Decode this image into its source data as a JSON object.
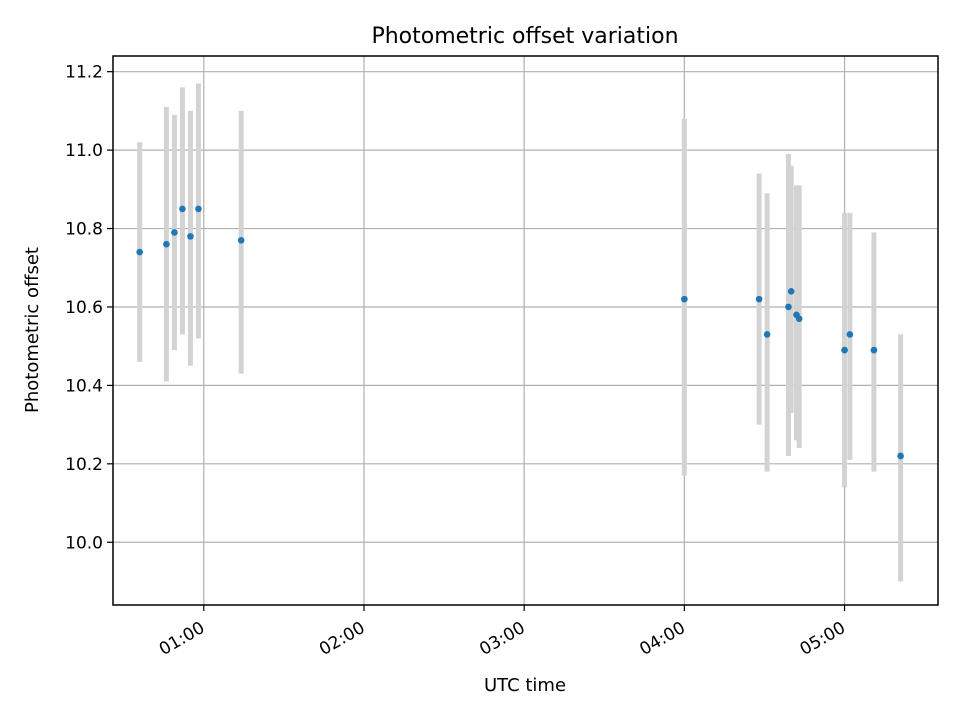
{
  "chart_data": {
    "type": "scatter",
    "title": "Photometric offset variation",
    "xlabel": "UTC time",
    "ylabel": "Photometric offset",
    "xlim": [
      "00:26",
      "05:35"
    ],
    "ylim": [
      9.84,
      11.24
    ],
    "x_ticks": [
      "01:00",
      "02:00",
      "03:00",
      "04:00",
      "05:00"
    ],
    "y_ticks": [
      10.0,
      10.2,
      10.4,
      10.6,
      10.8,
      11.0,
      11.2
    ],
    "grid": true,
    "marker_color": "#1f77b4",
    "errorbar_color": "#d3d3d3",
    "points": [
      {
        "x": "00:36",
        "y": 10.74,
        "low": 10.46,
        "high": 11.02
      },
      {
        "x": "00:46",
        "y": 10.76,
        "low": 10.41,
        "high": 11.11
      },
      {
        "x": "00:49",
        "y": 10.79,
        "low": 10.49,
        "high": 11.09
      },
      {
        "x": "00:52",
        "y": 10.85,
        "low": 10.53,
        "high": 11.16
      },
      {
        "x": "00:55",
        "y": 10.78,
        "low": 10.45,
        "high": 11.1
      },
      {
        "x": "00:58",
        "y": 10.85,
        "low": 10.52,
        "high": 11.17
      },
      {
        "x": "01:14",
        "y": 10.77,
        "low": 10.43,
        "high": 11.1
      },
      {
        "x": "04:00",
        "y": 10.62,
        "low": 10.17,
        "high": 11.08
      },
      {
        "x": "04:28",
        "y": 10.62,
        "low": 10.3,
        "high": 10.94
      },
      {
        "x": "04:31",
        "y": 10.53,
        "low": 10.18,
        "high": 10.89
      },
      {
        "x": "04:39",
        "y": 10.6,
        "low": 10.22,
        "high": 10.99
      },
      {
        "x": "04:40",
        "y": 10.64,
        "low": 10.33,
        "high": 10.96
      },
      {
        "x": "04:42",
        "y": 10.58,
        "low": 10.26,
        "high": 10.91
      },
      {
        "x": "04:43",
        "y": 10.57,
        "low": 10.24,
        "high": 10.91
      },
      {
        "x": "05:00",
        "y": 10.49,
        "low": 10.14,
        "high": 10.84
      },
      {
        "x": "05:02",
        "y": 10.53,
        "low": 10.21,
        "high": 10.84
      },
      {
        "x": "05:11",
        "y": 10.49,
        "low": 10.18,
        "high": 10.79
      },
      {
        "x": "05:21",
        "y": 10.22,
        "low": 9.9,
        "high": 10.53
      }
    ]
  }
}
